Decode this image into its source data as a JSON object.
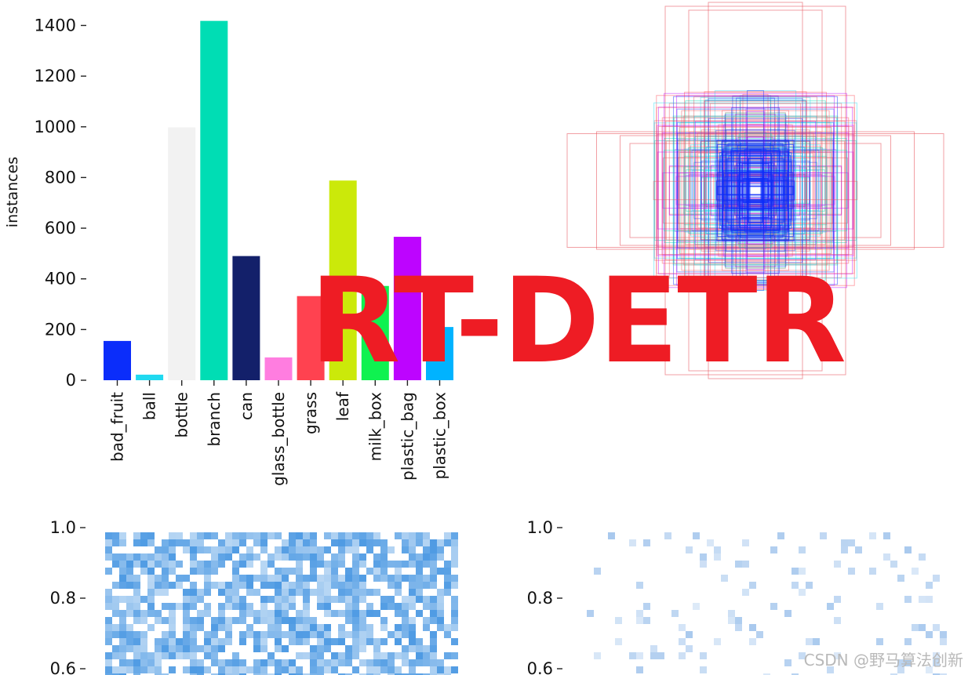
{
  "overlay_title": "RT-DETR",
  "watermark": "CSDN @野马算法创新",
  "chart_data": [
    {
      "type": "bar",
      "ylabel": "instances",
      "ylim": [
        0,
        1420
      ],
      "yticks": [
        0,
        200,
        400,
        600,
        800,
        1000,
        1200,
        1400
      ],
      "categories": [
        "bad_fruit",
        "ball",
        "bottle",
        "branch",
        "can",
        "glass_bottle",
        "grass",
        "leaf",
        "milk_box",
        "plastic_bag",
        "plastic_box"
      ],
      "values": [
        155,
        22,
        998,
        1418,
        490,
        90,
        332,
        788,
        372,
        566,
        210
      ],
      "colors": [
        "#0b2dfa",
        "#20d9f0",
        "#f2f2f2",
        "#00ddb4",
        "#13206a",
        "#ff7de0",
        "#ff4250",
        "#cbe90a",
        "#0ff250",
        "#bd04ff",
        "#00b3ff"
      ]
    },
    {
      "type": "box-overlay",
      "description_colors": [
        "#e8505a",
        "#00ddb4",
        "#bd04ff",
        "#0b2dfa",
        "#20d9f0",
        "#ff4250"
      ]
    },
    {
      "type": "heatmap",
      "yticks": [
        "1.0",
        "0.8",
        "0.6"
      ],
      "ylim_visible": [
        0.58,
        1.0
      ],
      "color": "#3a8fe0"
    },
    {
      "type": "heatmap",
      "yticks": [
        "1.0",
        "0.8",
        "0.6"
      ],
      "ylim_visible": [
        0.58,
        1.0
      ],
      "color": "#9fc3ec"
    }
  ]
}
